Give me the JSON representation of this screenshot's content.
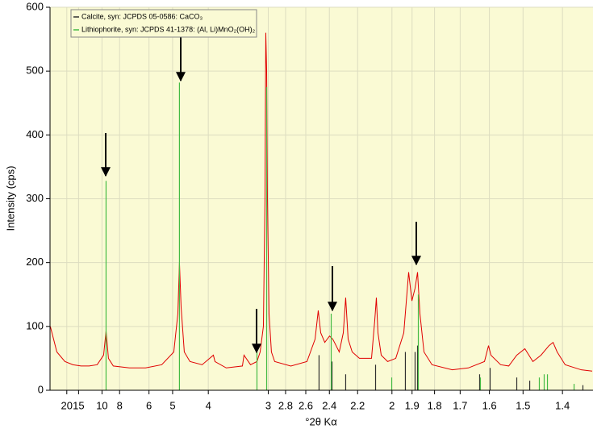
{
  "chart_data": {
    "type": "line",
    "xlabel": "°2θ Kα",
    "ylabel": "Intensity (cps)",
    "xlim": [
      2.3,
      70.6
    ],
    "ylim": [
      0,
      600
    ],
    "xticks": [
      {
        "value": 4.41,
        "label": "20"
      },
      {
        "value": 5.89,
        "label": "15"
      },
      {
        "value": 8.84,
        "label": "10"
      },
      {
        "value": 11.05,
        "label": "8"
      },
      {
        "value": 14.75,
        "label": "6"
      },
      {
        "value": 17.72,
        "label": "5"
      },
      {
        "value": 22.21,
        "label": "4"
      },
      {
        "value": 29.75,
        "label": "3"
      },
      {
        "value": 31.93,
        "label": "2.8"
      },
      {
        "value": 34.47,
        "label": "2.6"
      },
      {
        "value": 37.44,
        "label": "2.4"
      },
      {
        "value": 40.99,
        "label": "2.2"
      },
      {
        "value": 45.31,
        "label": "2"
      },
      {
        "value": 47.84,
        "label": "1.9"
      },
      {
        "value": 50.67,
        "label": "1.8"
      },
      {
        "value": 53.89,
        "label": "1.7"
      },
      {
        "value": 57.57,
        "label": "1.6"
      },
      {
        "value": 61.8,
        "label": "1.5"
      },
      {
        "value": 66.76,
        "label": "1.4"
      }
    ],
    "yticks": [
      0,
      100,
      200,
      300,
      400,
      500,
      600
    ],
    "grid": true,
    "legend": "top-left",
    "series": [
      {
        "color": "#e00000",
        "style": "line",
        "x": [
          2.34,
          3.16,
          4.17,
          5.19,
          6.2,
          7.22,
          8.23,
          9.04,
          9.35,
          9.65,
          10.26,
          12.29,
          14.32,
          16.35,
          17.87,
          18.38,
          18.58,
          18.79,
          19.19,
          19.9,
          21.43,
          22.85,
          23.05,
          24.47,
          26.5,
          26.7,
          27.52,
          28.33,
          28.73,
          29.14,
          29.34,
          29.44,
          29.55,
          29.65,
          29.85,
          30.15,
          30.56,
          32.59,
          34.62,
          35.64,
          36.04,
          36.35,
          36.86,
          37.46,
          37.87,
          38.28,
          38.68,
          39.19,
          39.49,
          39.8,
          40.31,
          41.22,
          42.74,
          43.15,
          43.35,
          43.55,
          43.96,
          44.77,
          45.79,
          46.8,
          47.41,
          47.82,
          48.22,
          48.53,
          48.83,
          49.34,
          50.35,
          52.89,
          54.92,
          56.95,
          57.46,
          57.76,
          58.98,
          60.0,
          61.01,
          62.03,
          63.04,
          64.06,
          65.07,
          65.58,
          66.09,
          67.1,
          69.13,
          70.5
        ],
        "values": [
          100,
          60,
          45,
          40,
          38,
          38,
          40,
          55,
          93,
          50,
          38,
          35,
          35,
          40,
          60,
          120,
          200,
          130,
          60,
          45,
          40,
          55,
          45,
          35,
          38,
          55,
          40,
          45,
          60,
          100,
          300,
          560,
          500,
          300,
          120,
          60,
          45,
          38,
          45,
          80,
          125,
          90,
          75,
          85,
          80,
          70,
          60,
          90,
          145,
          80,
          60,
          50,
          50,
          110,
          145,
          90,
          55,
          45,
          50,
          90,
          185,
          140,
          160,
          185,
          120,
          60,
          40,
          32,
          35,
          45,
          70,
          55,
          40,
          38,
          55,
          65,
          45,
          55,
          70,
          75,
          60,
          40,
          32,
          30
        ]
      },
      {
        "name": "Calcite, syn: JCPDS 05-0586: CaCO₃",
        "color": "#303030",
        "style": "stick",
        "x": [
          36.14,
          37.77,
          39.49,
          43.25,
          47.0,
          48.22,
          48.53,
          56.34,
          57.66,
          61.01,
          62.64,
          69.33
        ],
        "values": [
          55,
          45,
          25,
          40,
          60,
          60,
          70,
          25,
          35,
          20,
          15,
          8
        ]
      },
      {
        "name": "Lithiophorite, syn: JCPDS 41-1378: (Al, Li)MnO₂(OH)₂",
        "color": "#44bb44",
        "style": "stick",
        "x": [
          9.35,
          18.58,
          28.33,
          29.55,
          37.67,
          45.28,
          48.63,
          56.44,
          63.85,
          64.46,
          64.87,
          68.22
        ],
        "values": [
          328,
          482,
          60,
          475,
          120,
          20,
          150,
          20,
          20,
          25,
          25,
          10
        ]
      }
    ]
  }
}
